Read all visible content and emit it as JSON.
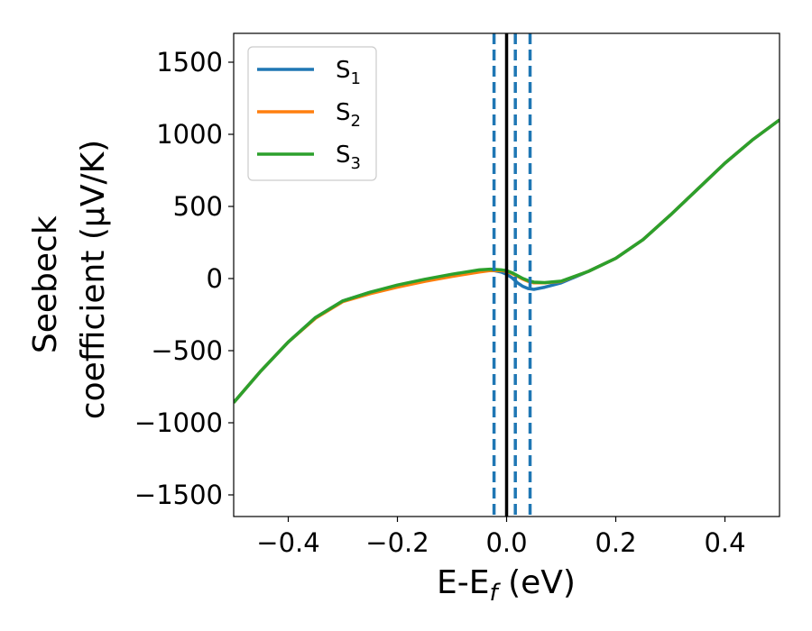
{
  "chart_data": {
    "type": "line",
    "xlabel": "E-E_f (eV)",
    "ylabel_line1": "Seebeck",
    "ylabel_line2": "coefficient  (μV/K)",
    "xlim": [
      -0.5,
      0.5
    ],
    "ylim": [
      -1650,
      1700
    ],
    "xticks": [
      -0.4,
      -0.2,
      0.0,
      0.2,
      0.4
    ],
    "xtick_labels": [
      "−0.4",
      "−0.2",
      "0.0",
      "0.2",
      "0.4"
    ],
    "yticks": [
      -1500,
      -1000,
      -500,
      0,
      500,
      1000,
      1500
    ],
    "ytick_labels": [
      "−1500",
      "−1000",
      "−500",
      "0",
      "500",
      "1000",
      "1500"
    ],
    "grid": false,
    "legend_position": "top-left",
    "series": [
      {
        "name": "S1",
        "label_base": "S",
        "label_sub": "1",
        "color": "#1f77b4",
        "x": [
          -0.5,
          -0.45,
          -0.4,
          -0.35,
          -0.3,
          -0.25,
          -0.2,
          -0.15,
          -0.1,
          -0.05,
          -0.03,
          -0.01,
          0.0,
          0.01,
          0.02,
          0.03,
          0.04,
          0.05,
          0.07,
          0.1,
          0.15,
          0.2,
          0.25,
          0.3,
          0.35,
          0.4,
          0.45,
          0.5
        ],
        "y": [
          -860,
          -640,
          -440,
          -270,
          -155,
          -95,
          -50,
          -10,
          25,
          55,
          60,
          45,
          30,
          5,
          -30,
          -55,
          -70,
          -75,
          -60,
          -30,
          50,
          140,
          270,
          440,
          620,
          800,
          960,
          1100
        ]
      },
      {
        "name": "S2",
        "label_base": "S",
        "label_sub": "2",
        "color": "#ff7f0e",
        "x": [
          -0.5,
          -0.45,
          -0.4,
          -0.35,
          -0.3,
          -0.25,
          -0.2,
          -0.15,
          -0.1,
          -0.05,
          -0.03,
          -0.01,
          0.0,
          0.01,
          0.02,
          0.03,
          0.04,
          0.05,
          0.07,
          0.1,
          0.15,
          0.2,
          0.25,
          0.3,
          0.35,
          0.4,
          0.45,
          0.5
        ],
        "y": [
          -860,
          -640,
          -440,
          -275,
          -160,
          -105,
          -60,
          -20,
          15,
          45,
          55,
          55,
          50,
          35,
          15,
          -5,
          -20,
          -30,
          -30,
          -20,
          50,
          140,
          270,
          440,
          620,
          800,
          960,
          1100
        ]
      },
      {
        "name": "S3",
        "label_base": "S",
        "label_sub": "3",
        "color": "#2ca02c",
        "x": [
          -0.5,
          -0.45,
          -0.4,
          -0.35,
          -0.3,
          -0.25,
          -0.2,
          -0.15,
          -0.1,
          -0.05,
          -0.03,
          -0.01,
          0.0,
          0.01,
          0.02,
          0.03,
          0.04,
          0.05,
          0.07,
          0.1,
          0.15,
          0.2,
          0.25,
          0.3,
          0.35,
          0.4,
          0.45,
          0.5
        ],
        "y": [
          -860,
          -640,
          -440,
          -270,
          -155,
          -95,
          -45,
          -5,
          30,
          60,
          65,
          60,
          55,
          40,
          20,
          0,
          -15,
          -25,
          -28,
          -18,
          50,
          140,
          270,
          440,
          620,
          800,
          960,
          1100
        ]
      }
    ],
    "vlines": [
      {
        "x": -0.023,
        "color": "#1f77b4",
        "style": "dashed"
      },
      {
        "x": 0.0,
        "color": "#000000",
        "style": "solid"
      },
      {
        "x": 0.016,
        "color": "#1f77b4",
        "style": "dashed"
      },
      {
        "x": 0.043,
        "color": "#1f77b4",
        "style": "dashed"
      }
    ]
  }
}
